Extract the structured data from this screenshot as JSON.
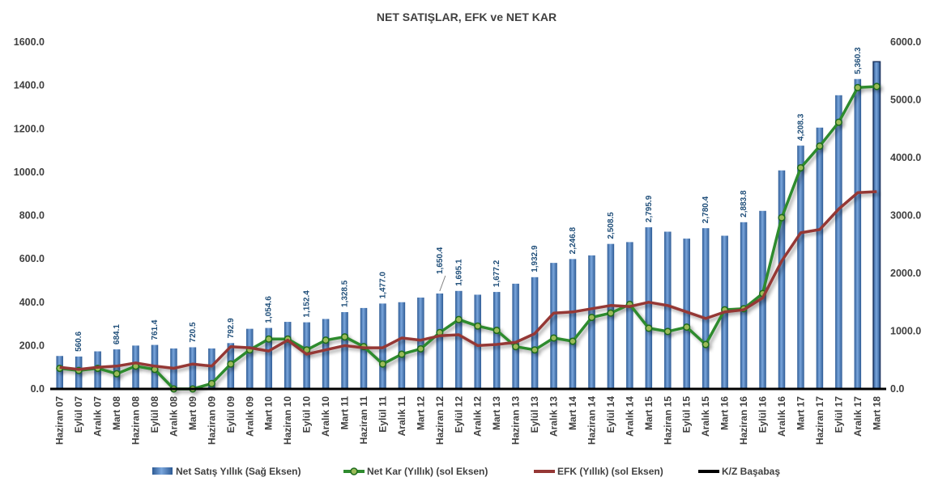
{
  "title": "NET SATIŞLAR, EFK ve NET KAR",
  "chart_data": {
    "type": "bar",
    "title": "NET SATIŞLAR, EFK ve NET KAR",
    "categories": [
      "Haziran 07",
      "Eylül 07",
      "Aralık 07",
      "Mart 08",
      "Haziran 08",
      "Eylül 08",
      "Aralık 08",
      "Mart 09",
      "Haziran 09",
      "Eylül 09",
      "Aralık 09",
      "Mart 10",
      "Haziran 10",
      "Eylül 10",
      "Aralık 10",
      "Mart 11",
      "Haziran 11",
      "Eylül 11",
      "Aralık 11",
      "Mart 12",
      "Haziran 12",
      "Eylül 12",
      "Aralık 12",
      "Mart 13",
      "Haziran 13",
      "Eylül 13",
      "Aralık 13",
      "Mart 14",
      "Haziran 14",
      "Eylül 14",
      "Aralık 14",
      "Mart 15",
      "Haziran 15",
      "Eylül 15",
      "Aralık 15",
      "Mart 16",
      "Haziran 16",
      "Eylül 16",
      "Aralık 16",
      "Mart 17",
      "Haziran 17",
      "Eylül 17",
      "Aralık 17",
      "Mart 18"
    ],
    "left_axis": {
      "min": 0,
      "max": 1600,
      "ticks": [
        "0.0",
        "200.0",
        "400.0",
        "600.0",
        "800.0",
        "1000.0",
        "1200.0",
        "1400.0",
        "1600.0"
      ]
    },
    "right_axis": {
      "min": 0,
      "max": 6000,
      "ticks": [
        "0.0",
        "1000.0",
        "2000.0",
        "3000.0",
        "4000.0",
        "5000.0",
        "6000.0"
      ]
    },
    "series": [
      {
        "name": "Net Satış Yıllık (Sağ Eksen)",
        "kind": "bar",
        "axis": "right",
        "color": "#4f81bd",
        "values": [
          570,
          560.6,
          650,
          684.1,
          750,
          761.4,
          700,
          720.5,
          700,
          792.9,
          1040,
          1054.6,
          1160,
          1152.4,
          1210,
          1328.5,
          1400,
          1477.0,
          1500,
          1580,
          1650.4,
          1695.1,
          1630,
          1677.2,
          1820,
          1932.9,
          2180,
          2246.8,
          2310,
          2508.5,
          2540,
          2795.9,
          2720,
          2600,
          2780.4,
          2650,
          2883.8,
          3080,
          3780,
          4208.3,
          4520,
          5080,
          5360.3,
          5660
        ]
      },
      {
        "name": "Net Kar (Yıllık) (sol Eksen)",
        "kind": "line",
        "axis": "left",
        "color": "#2e8b2e",
        "values": [
          95,
          85,
          95,
          70,
          105,
          90,
          0,
          0,
          25,
          115,
          180,
          230,
          230,
          180,
          225,
          240,
          195,
          115,
          160,
          185,
          260,
          320,
          290,
          270,
          195,
          180,
          235,
          220,
          330,
          350,
          390,
          280,
          265,
          285,
          205,
          365,
          370,
          440,
          790,
          1020,
          1120,
          1230,
          1390,
          1395
        ]
      },
      {
        "name": "EFK (Yıllık) (sol Eksen)",
        "kind": "line",
        "axis": "left",
        "color": "#953735",
        "values": [
          100,
          90,
          100,
          105,
          120,
          105,
          95,
          115,
          105,
          195,
          190,
          175,
          225,
          160,
          180,
          200,
          190,
          190,
          235,
          225,
          245,
          250,
          200,
          205,
          215,
          255,
          350,
          355,
          370,
          385,
          380,
          400,
          385,
          355,
          325,
          355,
          365,
          420,
          590,
          720,
          735,
          830,
          905,
          910
        ]
      },
      {
        "name": "K/Z Başabaş",
        "kind": "line",
        "axis": "left",
        "color": "#000000",
        "values": [
          0,
          0,
          0,
          0,
          0,
          0,
          0,
          0,
          0,
          0,
          0,
          0,
          0,
          0,
          0,
          0,
          0,
          0,
          0,
          0,
          0,
          0,
          0,
          0,
          0,
          0,
          0,
          0,
          0,
          0,
          0,
          0,
          0,
          0,
          0,
          0,
          0,
          0,
          0,
          0,
          0,
          0,
          0,
          0
        ]
      }
    ],
    "bar_labels": [
      {
        "index": 1,
        "text": "560.6"
      },
      {
        "index": 3,
        "text": "684.1"
      },
      {
        "index": 5,
        "text": "761.4"
      },
      {
        "index": 7,
        "text": "720.5"
      },
      {
        "index": 9,
        "text": "792.9"
      },
      {
        "index": 11,
        "text": "1,054.6"
      },
      {
        "index": 13,
        "text": "1,152.4"
      },
      {
        "index": 15,
        "text": "1,328.5"
      },
      {
        "index": 17,
        "text": "1,477.0"
      },
      {
        "index": 20,
        "text": "1,650.4"
      },
      {
        "index": 21,
        "text": "1,695.1"
      },
      {
        "index": 23,
        "text": "1,677.2"
      },
      {
        "index": 25,
        "text": "1,932.9"
      },
      {
        "index": 27,
        "text": "2,246.8"
      },
      {
        "index": 29,
        "text": "2,508.5"
      },
      {
        "index": 31,
        "text": "2,795.9"
      },
      {
        "index": 34,
        "text": "2,780.4"
      },
      {
        "index": 36,
        "text": "2,883.8"
      },
      {
        "index": 39,
        "text": "4,208.3"
      },
      {
        "index": 42,
        "text": "5,360.3"
      }
    ],
    "legend_position": "bottom",
    "grid": false
  }
}
